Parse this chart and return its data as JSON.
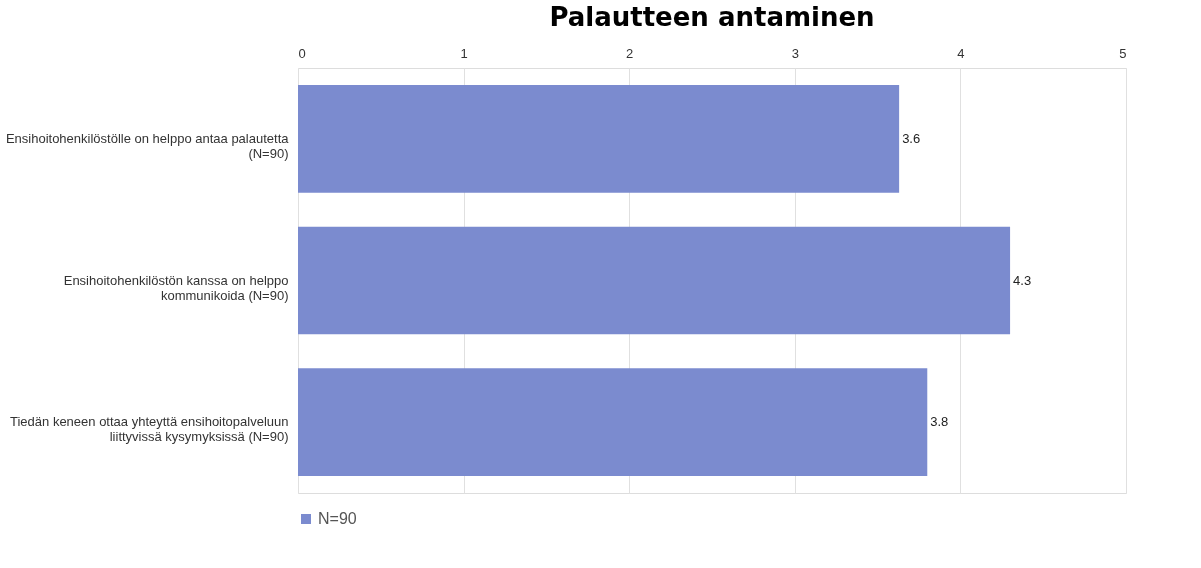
{
  "chart_data": {
    "type": "bar",
    "orientation": "horizontal",
    "title": "Palautteen antaminen",
    "categories": [
      "Ensihoitohenkilöstölle on helppo antaa palautetta (N=90)",
      "Ensihoitohenkilöstön kanssa on helppo kommunikoida (N=90)",
      "Tiedän keneen ottaa yhteyttä ensihoitopalveluun liittyvissä kysymyksissä (N=90)"
    ],
    "series": [
      {
        "name": "N=90",
        "color": "#7b8bcf",
        "values": [
          3.63,
          4.3,
          3.8
        ],
        "value_labels": [
          "3.6",
          "4.3",
          "3.8"
        ]
      }
    ],
    "xlim": [
      0,
      5
    ],
    "xticks": [
      0,
      1,
      2,
      3,
      4,
      5
    ],
    "grid": "x",
    "legend": "bottom"
  }
}
